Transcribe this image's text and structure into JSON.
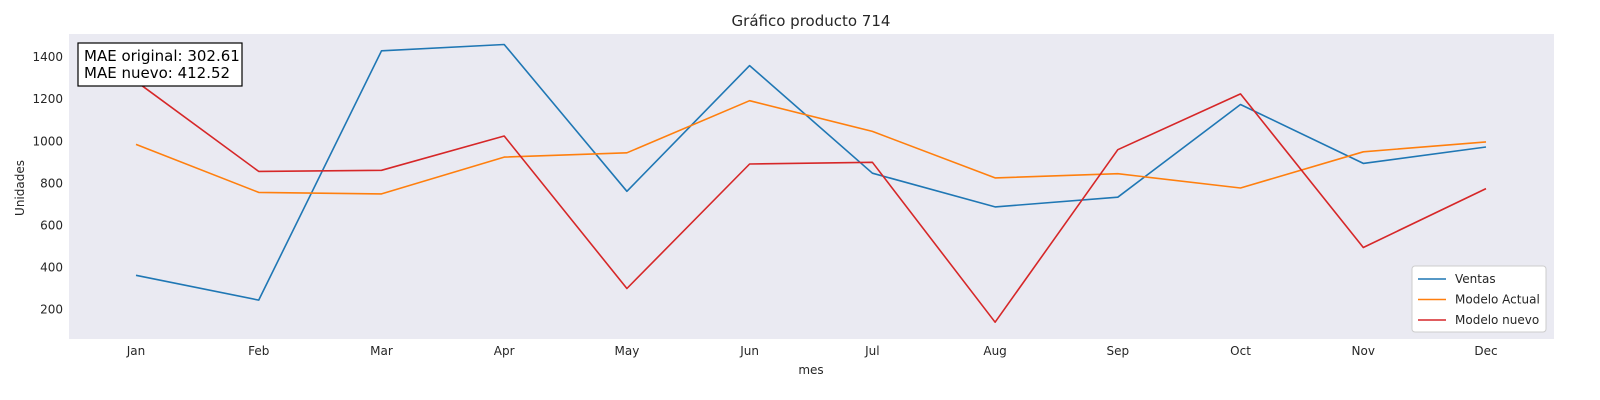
{
  "chart_data": {
    "type": "line",
    "title": "Gráfico producto 714",
    "xlabel": "mes",
    "ylabel": "Unidades",
    "categories": [
      "Jan",
      "Feb",
      "Mar",
      "Apr",
      "May",
      "Jun",
      "Jul",
      "Aug",
      "Sep",
      "Oct",
      "Nov",
      "Dec"
    ],
    "yticks": [
      200,
      400,
      600,
      800,
      1000,
      1200,
      1400
    ],
    "ylim": [
      60,
      1510
    ],
    "grid": false,
    "legend_position": "bottom-right",
    "background": "#eaeaf2",
    "annotation": {
      "line1": "MAE original: 302.61",
      "line2": "MAE nuevo: 412.52",
      "position": "top-left"
    },
    "series": [
      {
        "name": "Ventas",
        "color": "#1f77b4",
        "values": [
          363,
          245,
          1430,
          1460,
          762,
          1360,
          848,
          688,
          734,
          1175,
          895,
          973
        ]
      },
      {
        "name": "Modelo Actual",
        "color": "#ff7f0e",
        "values": [
          985,
          757,
          750,
          925,
          945,
          1193,
          1047,
          826,
          846,
          778,
          950,
          997
        ]
      },
      {
        "name": "Modelo nuevo",
        "color": "#d62728",
        "values": [
          1285,
          857,
          862,
          1025,
          300,
          892,
          900,
          140,
          960,
          1225,
          495,
          775
        ]
      }
    ]
  }
}
